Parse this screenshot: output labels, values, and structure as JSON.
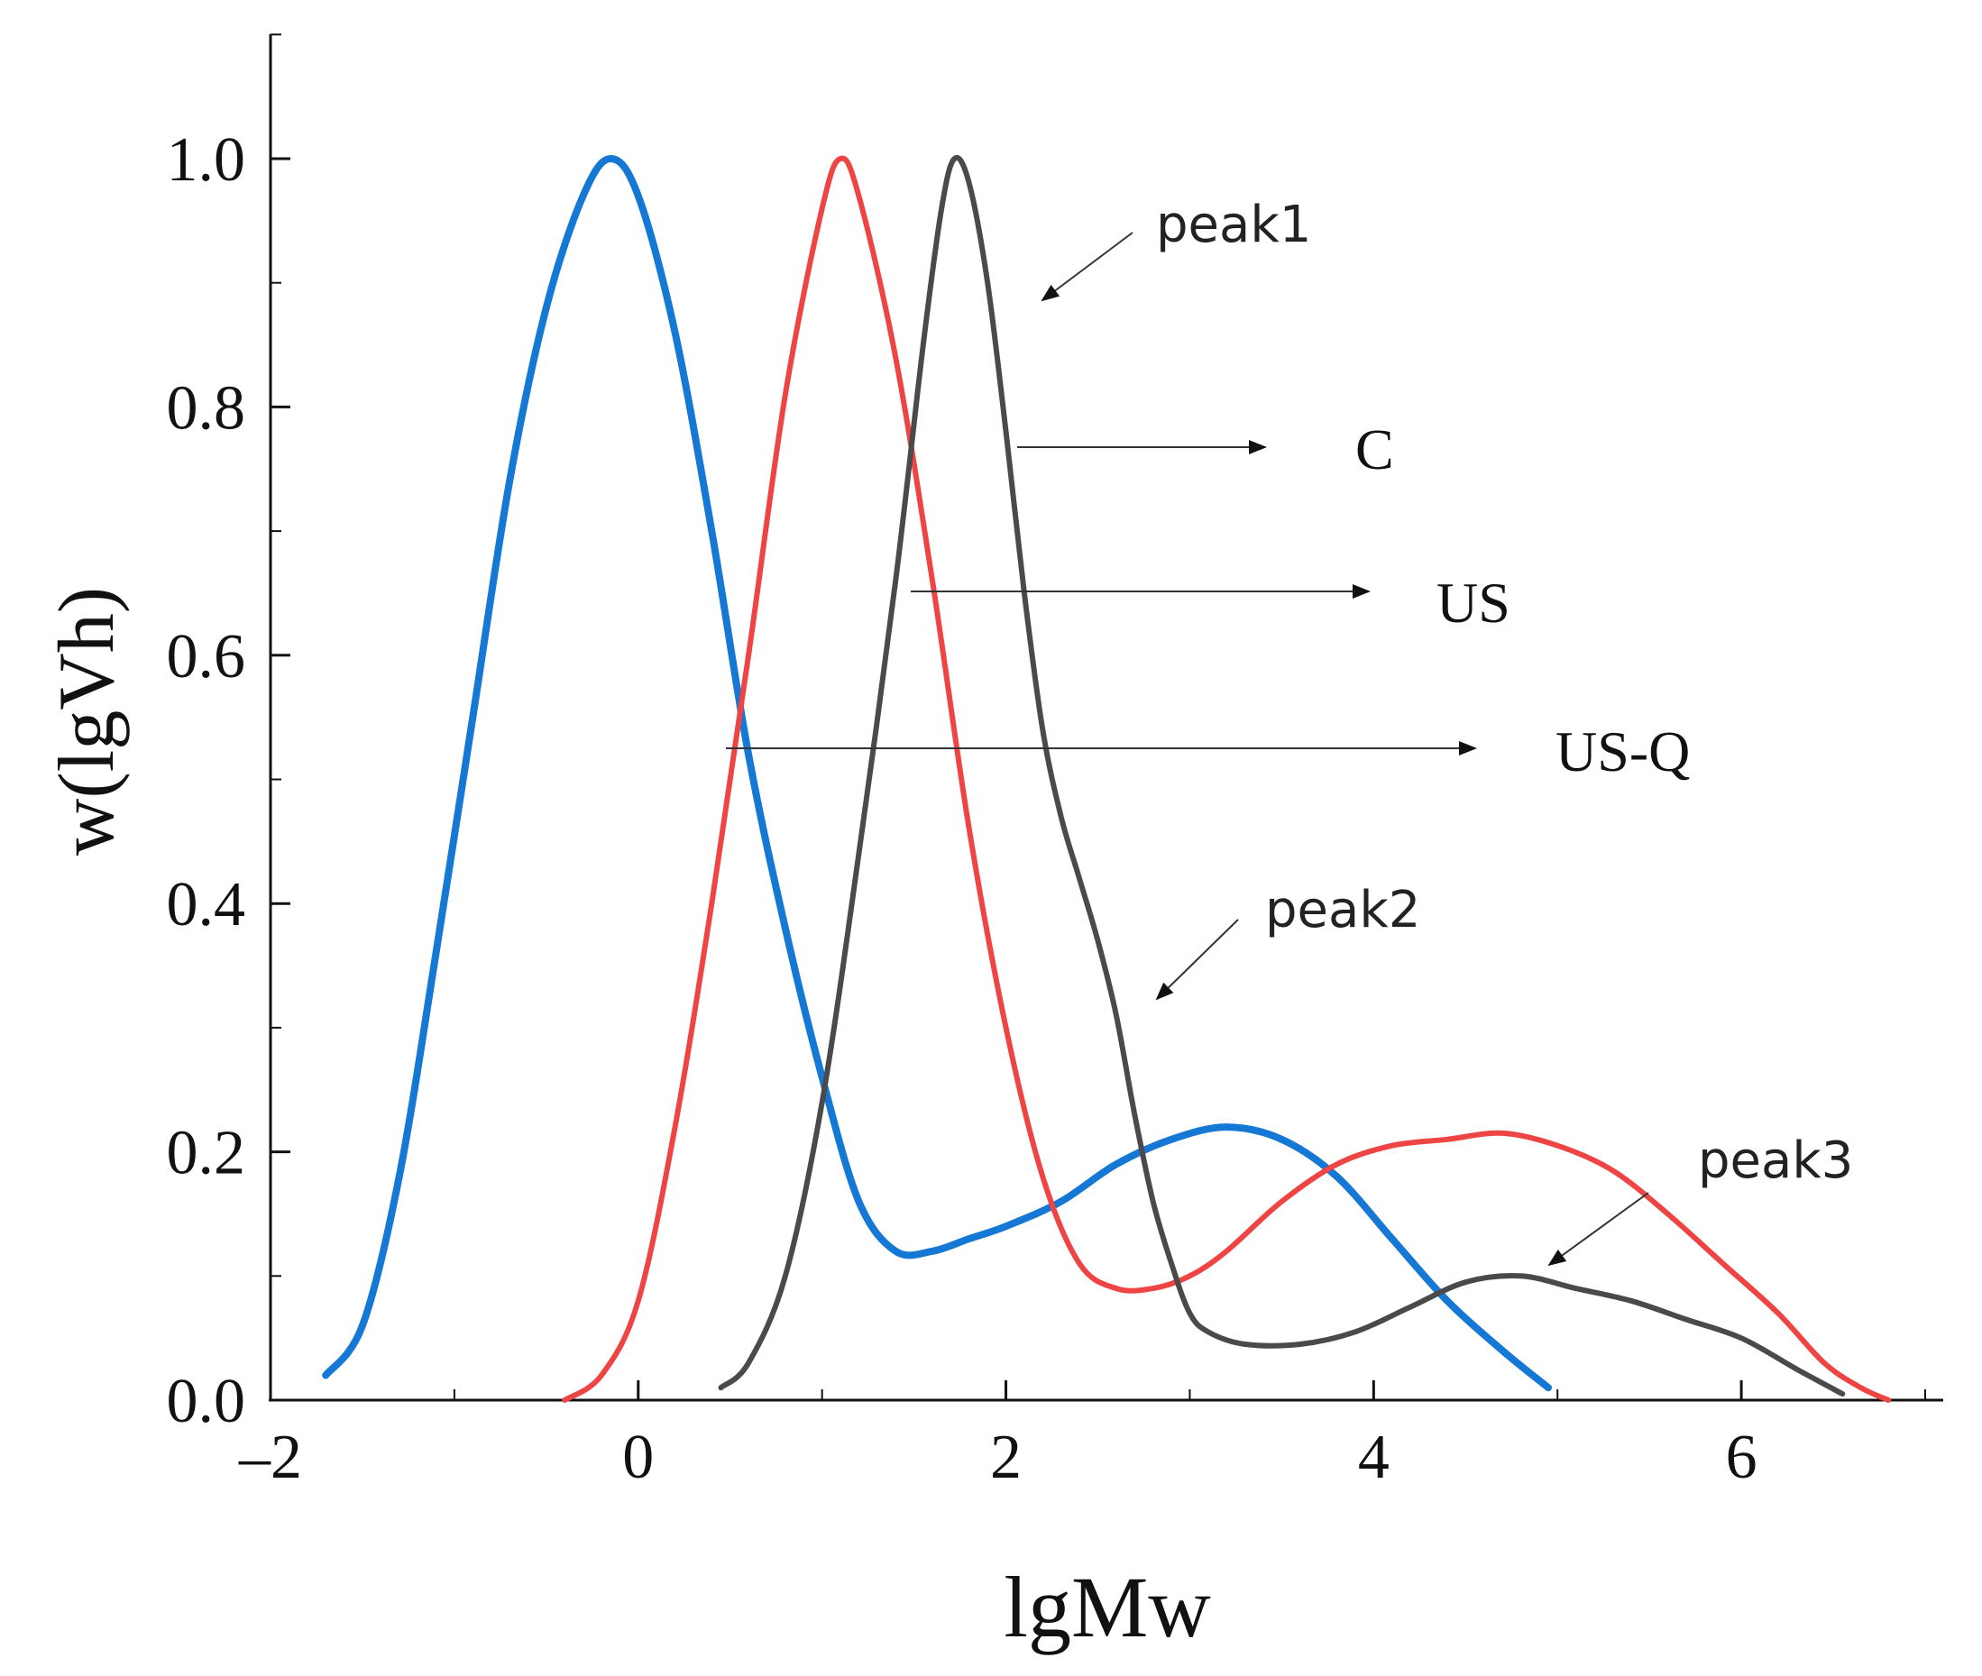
{
  "chart_data": {
    "type": "line",
    "xlabel": "lgMw",
    "ylabel": "w(lgVh)",
    "xlim": [
      -2,
      7
    ],
    "ylim": [
      0,
      1.1
    ],
    "x_ticks": [
      -2,
      0,
      2,
      4,
      6
    ],
    "x_tick_labels": [
      "–2",
      "0",
      "2",
      "4",
      "6"
    ],
    "y_ticks": [
      0,
      0.2,
      0.4,
      0.6,
      0.8,
      1.0
    ],
    "y_tick_labels": [
      "0.0",
      "0.2",
      "0.4",
      "0.6",
      "0.8",
      "1.0"
    ],
    "grid": false,
    "series": [
      {
        "name": "US-Q",
        "color": "#1478d4",
        "points": [
          [
            -1.7,
            0.02
          ],
          [
            -1.5,
            0.06
          ],
          [
            -1.3,
            0.18
          ],
          [
            -1.1,
            0.36
          ],
          [
            -0.9,
            0.55
          ],
          [
            -0.7,
            0.74
          ],
          [
            -0.5,
            0.88
          ],
          [
            -0.3,
            0.97
          ],
          [
            -0.15,
            1.0
          ],
          [
            0.0,
            0.97
          ],
          [
            0.2,
            0.86
          ],
          [
            0.4,
            0.7
          ],
          [
            0.6,
            0.52
          ],
          [
            0.8,
            0.38
          ],
          [
            1.0,
            0.26
          ],
          [
            1.2,
            0.16
          ],
          [
            1.4,
            0.12
          ],
          [
            1.6,
            0.12
          ],
          [
            1.8,
            0.13
          ],
          [
            2.0,
            0.14
          ],
          [
            2.3,
            0.16
          ],
          [
            2.6,
            0.19
          ],
          [
            2.9,
            0.21
          ],
          [
            3.2,
            0.22
          ],
          [
            3.5,
            0.21
          ],
          [
            3.8,
            0.18
          ],
          [
            4.1,
            0.13
          ],
          [
            4.4,
            0.08
          ],
          [
            4.7,
            0.04
          ],
          [
            4.95,
            0.01
          ]
        ]
      },
      {
        "name": "US",
        "color": "#ee4444",
        "points": [
          [
            -0.4,
            0.0
          ],
          [
            -0.2,
            0.02
          ],
          [
            0.0,
            0.08
          ],
          [
            0.2,
            0.22
          ],
          [
            0.4,
            0.4
          ],
          [
            0.6,
            0.6
          ],
          [
            0.8,
            0.81
          ],
          [
            1.0,
            0.96
          ],
          [
            1.1,
            1.0
          ],
          [
            1.2,
            0.97
          ],
          [
            1.4,
            0.84
          ],
          [
            1.6,
            0.66
          ],
          [
            1.8,
            0.46
          ],
          [
            2.0,
            0.3
          ],
          [
            2.2,
            0.18
          ],
          [
            2.4,
            0.11
          ],
          [
            2.6,
            0.09
          ],
          [
            2.8,
            0.09
          ],
          [
            3.0,
            0.1
          ],
          [
            3.2,
            0.12
          ],
          [
            3.5,
            0.16
          ],
          [
            3.8,
            0.19
          ],
          [
            4.1,
            0.205
          ],
          [
            4.4,
            0.21
          ],
          [
            4.7,
            0.215
          ],
          [
            5.0,
            0.205
          ],
          [
            5.3,
            0.185
          ],
          [
            5.6,
            0.15
          ],
          [
            5.9,
            0.11
          ],
          [
            6.2,
            0.07
          ],
          [
            6.45,
            0.03
          ],
          [
            6.65,
            0.01
          ],
          [
            6.8,
            0.0
          ]
        ]
      },
      {
        "name": "C",
        "color": "#4a4a4a",
        "points": [
          [
            0.45,
            0.01
          ],
          [
            0.6,
            0.03
          ],
          [
            0.8,
            0.1
          ],
          [
            1.0,
            0.24
          ],
          [
            1.2,
            0.44
          ],
          [
            1.4,
            0.66
          ],
          [
            1.55,
            0.85
          ],
          [
            1.65,
            0.96
          ],
          [
            1.72,
            1.0
          ],
          [
            1.8,
            0.98
          ],
          [
            1.9,
            0.9
          ],
          [
            2.0,
            0.78
          ],
          [
            2.1,
            0.65
          ],
          [
            2.2,
            0.54
          ],
          [
            2.3,
            0.47
          ],
          [
            2.4,
            0.42
          ],
          [
            2.5,
            0.37
          ],
          [
            2.6,
            0.31
          ],
          [
            2.7,
            0.23
          ],
          [
            2.8,
            0.16
          ],
          [
            2.9,
            0.11
          ],
          [
            3.0,
            0.07
          ],
          [
            3.1,
            0.055
          ],
          [
            3.3,
            0.045
          ],
          [
            3.6,
            0.045
          ],
          [
            3.9,
            0.055
          ],
          [
            4.2,
            0.075
          ],
          [
            4.5,
            0.095
          ],
          [
            4.8,
            0.1
          ],
          [
            5.1,
            0.09
          ],
          [
            5.4,
            0.08
          ],
          [
            5.7,
            0.065
          ],
          [
            6.0,
            0.05
          ],
          [
            6.3,
            0.025
          ],
          [
            6.55,
            0.005
          ]
        ]
      }
    ],
    "annotations": [
      {
        "text": "C",
        "series": "C"
      },
      {
        "text": "US",
        "series": "US"
      },
      {
        "text": "US-Q",
        "series": "US-Q"
      },
      {
        "text": "peak1"
      },
      {
        "text": "peak2"
      },
      {
        "text": "peak3"
      }
    ]
  }
}
